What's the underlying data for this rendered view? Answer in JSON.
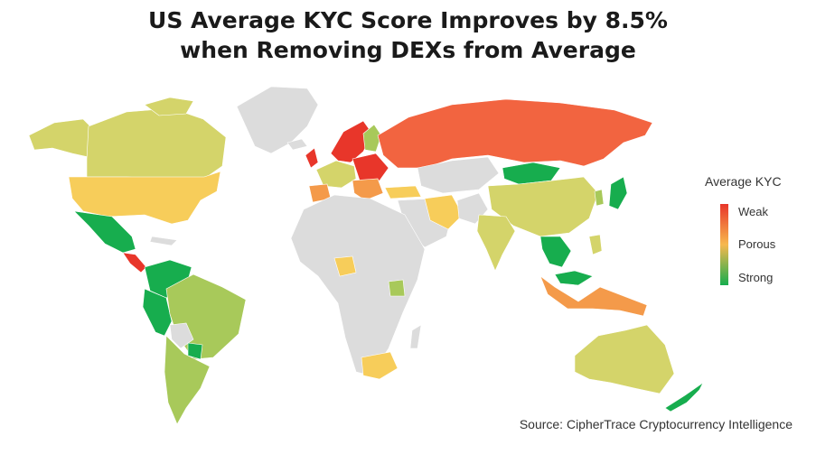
{
  "title": {
    "line1": "US Average KYC Score Improves by 8.5%",
    "line2": "when Removing DEXs from Average"
  },
  "legend": {
    "title": "Average KYC",
    "labels": [
      "Weak",
      "Porous",
      "Strong"
    ],
    "colors": {
      "weak": "#e8362a",
      "porous": "#f7b84e",
      "strong": "#17ad4e"
    }
  },
  "source": "Source: CipherTrace Cryptocurrency Intelligence",
  "map_colors": {
    "no_data": "#dcdcdc",
    "russia": "#f26440",
    "weak_red": "#e8362a",
    "orange": "#f49a4a",
    "yellow": "#f7cd5a",
    "yellow_green": "#d4d46a",
    "light_green": "#a8c95a",
    "green": "#17ad4e"
  }
}
